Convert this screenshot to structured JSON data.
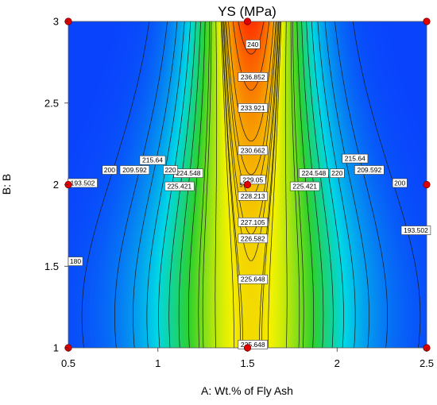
{
  "chart_data": {
    "type": "contour",
    "title": "YS  (MPa)",
    "xlabel": "A: Wt.% of Fly Ash",
    "ylabel": "B: B",
    "xlim": [
      0.5,
      2.5
    ],
    "ylim": [
      1,
      3
    ],
    "xticks": [
      "0.5",
      "1",
      "1.5",
      "2",
      "2.5"
    ],
    "yticks": [
      "1",
      "1.5",
      "2",
      "2.5",
      "3"
    ],
    "design_points": [
      {
        "x": 0.5,
        "y": 1
      },
      {
        "x": 0.5,
        "y": 2
      },
      {
        "x": 0.5,
        "y": 3
      },
      {
        "x": 1.5,
        "y": 1
      },
      {
        "x": 1.5,
        "y": 2
      },
      {
        "x": 1.5,
        "y": 3
      },
      {
        "x": 2.5,
        "y": 1
      },
      {
        "x": 2.5,
        "y": 2
      },
      {
        "x": 2.5,
        "y": 3
      }
    ],
    "center_point_count": "5",
    "contour_labels": [
      {
        "text": "240",
        "x": 1.53,
        "y": 2.86
      },
      {
        "text": "236.852",
        "x": 1.53,
        "y": 2.66
      },
      {
        "text": "233.921",
        "x": 1.53,
        "y": 2.47
      },
      {
        "text": "230.662",
        "x": 1.53,
        "y": 2.21
      },
      {
        "text": "229.05",
        "x": 1.53,
        "y": 2.03
      },
      {
        "text": "228.213",
        "x": 1.53,
        "y": 1.93
      },
      {
        "text": "227.105",
        "x": 1.53,
        "y": 1.77
      },
      {
        "text": "226.582",
        "x": 1.53,
        "y": 1.67
      },
      {
        "text": "225.648",
        "x": 1.53,
        "y": 1.42
      },
      {
        "text": "225.648",
        "x": 1.53,
        "y": 1.02
      },
      {
        "text": "224.548",
        "x": 1.17,
        "y": 2.07
      },
      {
        "text": "225.421",
        "x": 1.12,
        "y": 1.99
      },
      {
        "text": "224.548",
        "x": 1.87,
        "y": 2.07
      },
      {
        "text": "225.421",
        "x": 1.82,
        "y": 1.99
      },
      {
        "text": "220",
        "x": 1.07,
        "y": 2.09
      },
      {
        "text": "215.64",
        "x": 0.97,
        "y": 2.15
      },
      {
        "text": "209.592",
        "x": 0.87,
        "y": 2.09
      },
      {
        "text": "200",
        "x": 0.73,
        "y": 2.09
      },
      {
        "text": "193.502",
        "x": 0.58,
        "y": 2.01
      },
      {
        "text": "180",
        "x": 0.54,
        "y": 1.53
      },
      {
        "text": "220",
        "x": 2.0,
        "y": 2.07
      },
      {
        "text": "215.64",
        "x": 2.1,
        "y": 2.16
      },
      {
        "text": "209.592",
        "x": 2.18,
        "y": 2.09
      },
      {
        "text": "200",
        "x": 2.35,
        "y": 2.01
      },
      {
        "text": "193.502",
        "x": 2.44,
        "y": 1.72
      }
    ],
    "colors": {
      "low": "#0a32ff",
      "mid_low": "#00d7e6",
      "mid": "#2dd12d",
      "mid_high": "#f2f200",
      "high": "#ff1a00",
      "point": "#e00000"
    },
    "grid": false,
    "legend": "none"
  }
}
